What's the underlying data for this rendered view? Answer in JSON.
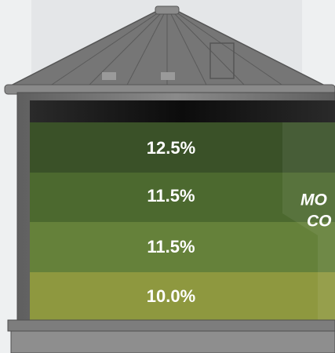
{
  "layers": [
    {
      "label": "12.5%"
    },
    {
      "label": "11.5%"
    },
    {
      "label": "11.5%"
    },
    {
      "label": "10.0%"
    }
  ],
  "side_label": [
    "MO",
    "CO"
  ]
}
